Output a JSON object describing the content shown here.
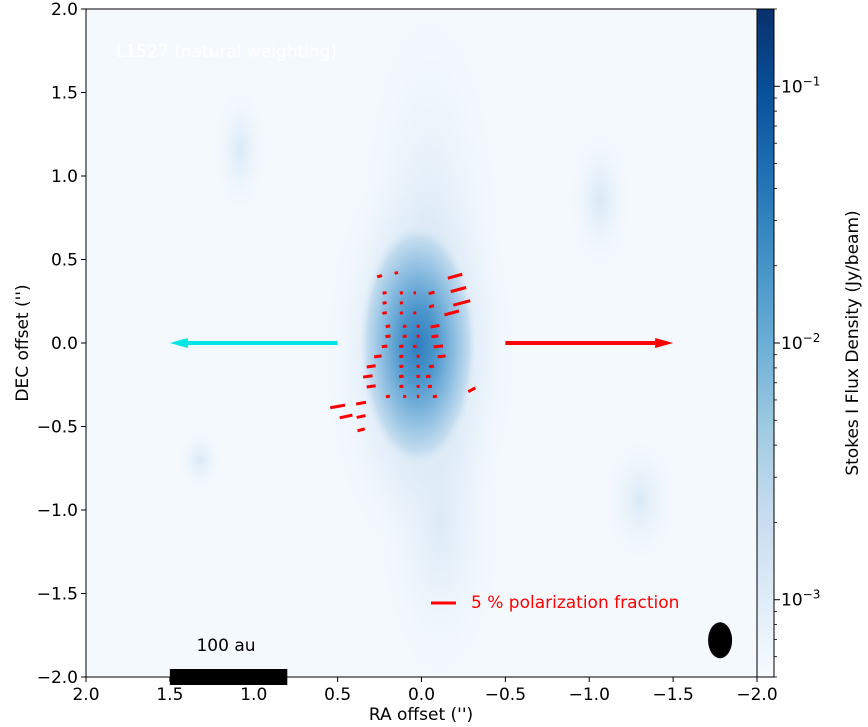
{
  "chart_data": {
    "type": "heatmap",
    "title": "L1527 (natural weighting)",
    "xlabel": "RA offset ('')",
    "ylabel": "DEC offset ('')",
    "xlim": [
      2.0,
      -2.0
    ],
    "ylim": [
      -2.0,
      2.0
    ],
    "x_ticks": [
      "2.0",
      "1.5",
      "1.0",
      "0.5",
      "0.0",
      "−0.5",
      "−1.0",
      "−1.5",
      "−2.0"
    ],
    "y_ticks": [
      "−2.0",
      "−1.5",
      "−1.0",
      "−0.5",
      "0.0",
      "0.5",
      "1.0",
      "1.5",
      "2.0"
    ],
    "x_tick_values": [
      2.0,
      1.5,
      1.0,
      0.5,
      0.0,
      -0.5,
      -1.0,
      -1.5,
      -2.0
    ],
    "y_tick_values": [
      -2.0,
      -1.5,
      -1.0,
      -0.5,
      0.0,
      0.5,
      1.0,
      1.5,
      2.0
    ],
    "colorbar": {
      "label": "Stokes I Flux Density (Jy/beam)",
      "scale": "log",
      "range": [
        0.0005,
        0.2
      ],
      "ticks": [
        {
          "value": 0.1,
          "base": "10",
          "exp": "−1"
        },
        {
          "value": 0.01,
          "base": "10",
          "exp": "−2"
        },
        {
          "value": 0.001,
          "base": "10",
          "exp": "−3"
        }
      ],
      "colormap": [
        "#f7fbff",
        "#deebf7",
        "#c6dbef",
        "#9ecae1",
        "#6baed6",
        "#4292c6",
        "#2171b5",
        "#08519c",
        "#08306b"
      ]
    },
    "outflow_arrows": [
      {
        "name": "blue",
        "color": "#00e5e5",
        "from": [
          0.5,
          0.0
        ],
        "to": [
          1.5,
          0.0
        ]
      },
      {
        "name": "red",
        "color": "#ff0000",
        "from": [
          -0.5,
          0.0
        ],
        "to": [
          -1.5,
          0.0
        ]
      }
    ],
    "vector_legend": {
      "label": "5 % polarization fraction",
      "color": "#ff0000",
      "fraction_percent": 5
    },
    "scale_bar": {
      "label": "100 au",
      "x_from": 1.5,
      "x_to": 0.8,
      "y": -1.78
    },
    "beam": {
      "x": -1.78,
      "y": -1.78,
      "major": 0.14,
      "minor": 0.07
    },
    "polarization_vectors": [
      {
        "x": 0.25,
        "y": 0.4,
        "angle": -15,
        "p": 1.0
      },
      {
        "x": 0.15,
        "y": 0.42,
        "angle": -15,
        "p": 0.7
      },
      {
        "x": 0.22,
        "y": 0.3,
        "angle": -10,
        "p": 0.8
      },
      {
        "x": 0.12,
        "y": 0.3,
        "angle": -10,
        "p": 0.6
      },
      {
        "x": 0.04,
        "y": 0.3,
        "angle": -10,
        "p": 0.5
      },
      {
        "x": 0.22,
        "y": 0.24,
        "angle": -10,
        "p": 0.8
      },
      {
        "x": 0.12,
        "y": 0.24,
        "angle": -10,
        "p": 0.6
      },
      {
        "x": 0.22,
        "y": 0.18,
        "angle": -10,
        "p": 0.9
      },
      {
        "x": 0.12,
        "y": 0.18,
        "angle": -10,
        "p": 0.6
      },
      {
        "x": 0.04,
        "y": 0.18,
        "angle": -10,
        "p": 0.6
      },
      {
        "x": 0.2,
        "y": 0.1,
        "angle": -10,
        "p": 0.9
      },
      {
        "x": 0.1,
        "y": 0.1,
        "angle": -10,
        "p": 0.7
      },
      {
        "x": 0.02,
        "y": 0.1,
        "angle": -10,
        "p": 0.6
      },
      {
        "x": 0.2,
        "y": 0.04,
        "angle": -10,
        "p": 1.0
      },
      {
        "x": 0.1,
        "y": 0.04,
        "angle": -10,
        "p": 0.8
      },
      {
        "x": 0.02,
        "y": 0.04,
        "angle": -10,
        "p": 0.6
      },
      {
        "x": 0.22,
        "y": -0.02,
        "angle": -8,
        "p": 1.1
      },
      {
        "x": 0.12,
        "y": -0.02,
        "angle": -8,
        "p": 0.9
      },
      {
        "x": 0.04,
        "y": -0.02,
        "angle": -8,
        "p": 0.7
      },
      {
        "x": 0.26,
        "y": -0.08,
        "angle": -8,
        "p": 1.5
      },
      {
        "x": 0.12,
        "y": -0.08,
        "angle": -8,
        "p": 0.8
      },
      {
        "x": 0.02,
        "y": -0.08,
        "angle": -8,
        "p": 0.6
      },
      {
        "x": 0.3,
        "y": -0.14,
        "angle": -8,
        "p": 1.8
      },
      {
        "x": 0.12,
        "y": -0.14,
        "angle": -8,
        "p": 0.8
      },
      {
        "x": 0.02,
        "y": -0.14,
        "angle": -8,
        "p": 0.6
      },
      {
        "x": 0.32,
        "y": -0.2,
        "angle": -8,
        "p": 1.9
      },
      {
        "x": 0.12,
        "y": -0.2,
        "angle": -8,
        "p": 0.9
      },
      {
        "x": 0.02,
        "y": -0.2,
        "angle": -8,
        "p": 0.7
      },
      {
        "x": 0.3,
        "y": -0.26,
        "angle": -8,
        "p": 1.8
      },
      {
        "x": 0.12,
        "y": -0.26,
        "angle": -8,
        "p": 0.8
      },
      {
        "x": 0.02,
        "y": -0.26,
        "angle": -8,
        "p": 0.6
      },
      {
        "x": 0.2,
        "y": -0.32,
        "angle": -8,
        "p": 0.8
      },
      {
        "x": 0.1,
        "y": -0.32,
        "angle": -8,
        "p": 0.6
      },
      {
        "x": 0.02,
        "y": -0.32,
        "angle": -8,
        "p": 0.5
      },
      {
        "x": 0.5,
        "y": -0.38,
        "angle": -10,
        "p": 3.0
      },
      {
        "x": 0.36,
        "y": -0.36,
        "angle": -10,
        "p": 2.0
      },
      {
        "x": 0.45,
        "y": -0.44,
        "angle": -12,
        "p": 2.6
      },
      {
        "x": 0.36,
        "y": -0.44,
        "angle": -12,
        "p": 1.8
      },
      {
        "x": 0.36,
        "y": -0.52,
        "angle": -15,
        "p": 1.5
      },
      {
        "x": -0.2,
        "y": 0.4,
        "angle": -15,
        "p": 3.0
      },
      {
        "x": -0.22,
        "y": 0.32,
        "angle": -15,
        "p": 3.2
      },
      {
        "x": -0.24,
        "y": 0.24,
        "angle": -15,
        "p": 3.5
      },
      {
        "x": -0.18,
        "y": 0.18,
        "angle": -15,
        "p": 3.0
      },
      {
        "x": -0.06,
        "y": 0.3,
        "angle": -15,
        "p": 1.2
      },
      {
        "x": -0.06,
        "y": 0.22,
        "angle": -15,
        "p": 1.0
      },
      {
        "x": -0.08,
        "y": 0.1,
        "angle": -10,
        "p": 1.8
      },
      {
        "x": -0.08,
        "y": 0.04,
        "angle": -8,
        "p": 1.4
      },
      {
        "x": -0.1,
        "y": -0.02,
        "angle": -6,
        "p": 1.9
      },
      {
        "x": -0.12,
        "y": -0.08,
        "angle": -6,
        "p": 1.6
      },
      {
        "x": -0.06,
        "y": -0.14,
        "angle": -6,
        "p": 1.0
      },
      {
        "x": -0.04,
        "y": -0.2,
        "angle": -6,
        "p": 0.9
      },
      {
        "x": -0.05,
        "y": -0.26,
        "angle": -6,
        "p": 0.8
      },
      {
        "x": -0.08,
        "y": -0.32,
        "angle": -8,
        "p": 0.8
      },
      {
        "x": -0.3,
        "y": -0.28,
        "angle": -28,
        "p": 1.6
      }
    ]
  }
}
